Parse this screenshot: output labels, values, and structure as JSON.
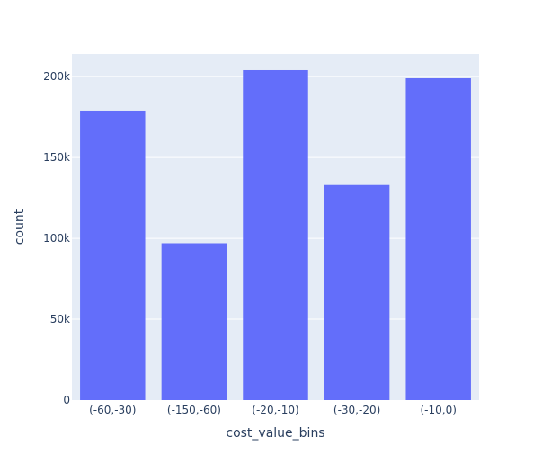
{
  "chart_data": {
    "type": "bar",
    "title": "",
    "xlabel": "cost_value_bins",
    "ylabel": "count",
    "categories": [
      "(-60,-30)",
      "(-150,-60)",
      "(-20,-10)",
      "(-30,-20)",
      "(-10,0)"
    ],
    "values": [
      179000,
      97000,
      204000,
      133000,
      199000
    ],
    "ylim": [
      0,
      214000
    ],
    "yticks": [
      0,
      50000,
      100000,
      150000,
      200000
    ],
    "ytick_labels": [
      "0",
      "50k",
      "100k",
      "150k",
      "200k"
    ],
    "grid": true,
    "legend": "none",
    "colors": {
      "bar": "#636efa",
      "plot_bg": "#e5ecf6",
      "grid": "#ffffff",
      "text": "#2a3f5f"
    }
  }
}
